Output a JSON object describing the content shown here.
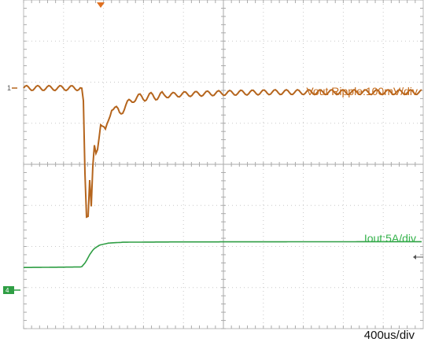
{
  "chart_data": {
    "type": "line",
    "title": "",
    "timebase_label": "400us/div",
    "grid": true,
    "divisions": {
      "x": 10,
      "y": 8
    },
    "x_range_us": [
      0,
      4000
    ],
    "series": [
      {
        "name": "Vout Ripple:100mV/div",
        "channel_marker": "1",
        "color": "#b5651d",
        "units": "mV",
        "baseline": 0,
        "points_us_mV": [
          [
            0,
            0
          ],
          [
            580,
            0
          ],
          [
            600,
            -40
          ],
          [
            620,
            -280
          ],
          [
            640,
            -340
          ],
          [
            660,
            -210
          ],
          [
            680,
            -300
          ],
          [
            700,
            -140
          ],
          [
            730,
            -170
          ],
          [
            770,
            -80
          ],
          [
            820,
            -110
          ],
          [
            880,
            -45
          ],
          [
            960,
            -60
          ],
          [
            1100,
            -25
          ],
          [
            1300,
            -20
          ],
          [
            1600,
            -15
          ],
          [
            2000,
            -12
          ],
          [
            2500,
            -10
          ],
          [
            3000,
            -10
          ],
          [
            4000,
            -10
          ]
        ],
        "ripple_mV": 12
      },
      {
        "name": "Iout:5A/div",
        "channel_marker": "4",
        "color": "#2f9e44",
        "units": "A",
        "points_us_A": [
          [
            0,
            0.1
          ],
          [
            580,
            0.2
          ],
          [
            620,
            1.0
          ],
          [
            660,
            2.3
          ],
          [
            700,
            3.3
          ],
          [
            760,
            4.0
          ],
          [
            850,
            4.35
          ],
          [
            1000,
            4.5
          ],
          [
            1500,
            4.55
          ],
          [
            4000,
            4.6
          ]
        ]
      }
    ],
    "trigger_marker_color": "#e07020"
  }
}
